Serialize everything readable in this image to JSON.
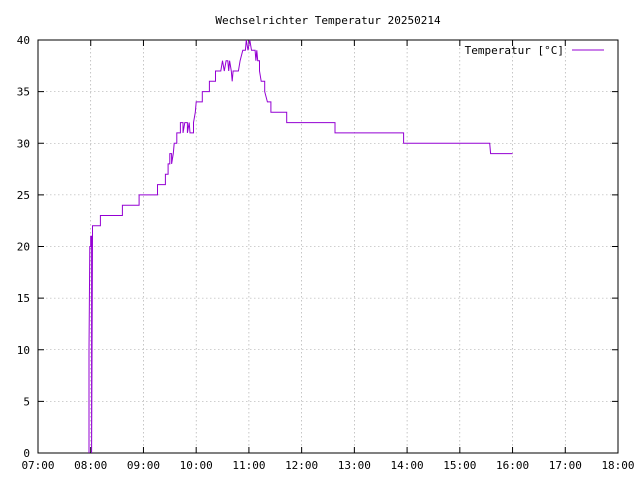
{
  "chart_data": {
    "type": "line",
    "title": "Wechselrichter Temperatur 20250214",
    "xlabel": "",
    "ylabel": "",
    "x_tick_labels": [
      "07:00",
      "08:00",
      "09:00",
      "10:00",
      "11:00",
      "12:00",
      "13:00",
      "14:00",
      "15:00",
      "16:00",
      "17:00",
      "18:00"
    ],
    "y_tick_labels": [
      "0",
      "5",
      "10",
      "15",
      "20",
      "25",
      "30",
      "35",
      "40"
    ],
    "xlim": [
      "07:00",
      "18:00"
    ],
    "ylim": [
      0,
      40
    ],
    "grid": true,
    "legend_position": "top-right",
    "series": [
      {
        "name": "Temperatur [°C]",
        "color": "#9400d3",
        "points": [
          [
            "07:58",
            0
          ],
          [
            "07:58",
            10
          ],
          [
            "07:59",
            20
          ],
          [
            "08:00",
            20
          ],
          [
            "08:00",
            21
          ],
          [
            "08:01",
            21
          ],
          [
            "08:01",
            0
          ],
          [
            "08:02",
            21
          ],
          [
            "08:02",
            22
          ],
          [
            "08:11",
            22
          ],
          [
            "08:11",
            23
          ],
          [
            "08:36",
            23
          ],
          [
            "08:36",
            24
          ],
          [
            "08:55",
            24
          ],
          [
            "08:55",
            25
          ],
          [
            "09:16",
            25
          ],
          [
            "09:16",
            26
          ],
          [
            "09:25",
            26
          ],
          [
            "09:25",
            27
          ],
          [
            "09:28",
            27
          ],
          [
            "09:28",
            28
          ],
          [
            "09:30",
            28
          ],
          [
            "09:30",
            29
          ],
          [
            "09:32",
            29
          ],
          [
            "09:32",
            28
          ],
          [
            "09:34",
            29
          ],
          [
            "09:35",
            30
          ],
          [
            "09:38",
            30
          ],
          [
            "09:38",
            31
          ],
          [
            "09:42",
            31
          ],
          [
            "09:42",
            32
          ],
          [
            "09:45",
            32
          ],
          [
            "09:45",
            31
          ],
          [
            "09:47",
            32
          ],
          [
            "09:50",
            32
          ],
          [
            "09:50",
            31
          ],
          [
            "09:52",
            32
          ],
          [
            "09:53",
            31
          ],
          [
            "09:57",
            31
          ],
          [
            "09:57",
            32
          ],
          [
            "09:59",
            33
          ],
          [
            "10:00",
            34
          ],
          [
            "10:07",
            34
          ],
          [
            "10:07",
            35
          ],
          [
            "10:15",
            35
          ],
          [
            "10:15",
            36
          ],
          [
            "10:22",
            36
          ],
          [
            "10:22",
            37
          ],
          [
            "10:28",
            37
          ],
          [
            "10:30",
            38
          ],
          [
            "10:32",
            37
          ],
          [
            "10:34",
            38
          ],
          [
            "10:36",
            38
          ],
          [
            "10:37",
            37
          ],
          [
            "10:38",
            38
          ],
          [
            "10:40",
            37
          ],
          [
            "10:41",
            36
          ],
          [
            "10:42",
            37
          ],
          [
            "10:48",
            37
          ],
          [
            "10:50",
            38
          ],
          [
            "10:53",
            39
          ],
          [
            "10:56",
            39
          ],
          [
            "10:57",
            40
          ],
          [
            "10:59",
            39
          ],
          [
            "11:01",
            40
          ],
          [
            "11:03",
            39
          ],
          [
            "11:07",
            39
          ],
          [
            "11:08",
            38
          ],
          [
            "11:09",
            39
          ],
          [
            "11:10",
            38
          ],
          [
            "11:12",
            38
          ],
          [
            "11:12",
            37
          ],
          [
            "11:14",
            36
          ],
          [
            "11:18",
            36
          ],
          [
            "11:18",
            35
          ],
          [
            "11:21",
            34
          ],
          [
            "11:25",
            34
          ],
          [
            "11:25",
            33
          ],
          [
            "11:43",
            33
          ],
          [
            "11:43",
            32
          ],
          [
            "12:38",
            32
          ],
          [
            "12:38",
            31
          ],
          [
            "13:56",
            31
          ],
          [
            "13:56",
            30
          ],
          [
            "15:34",
            30
          ],
          [
            "15:35",
            29
          ],
          [
            "15:36",
            29
          ],
          [
            "16:00",
            29
          ]
        ]
      }
    ]
  }
}
